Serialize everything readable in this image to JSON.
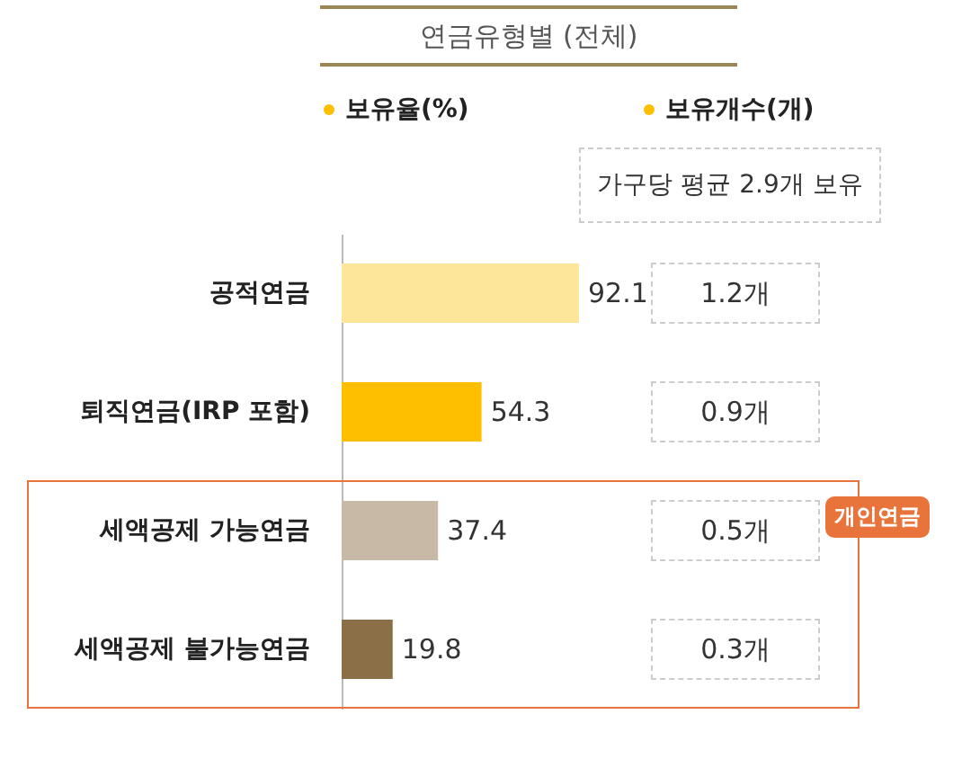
{
  "chart_data": {
    "type": "bar",
    "orientation": "horizontal",
    "title": "연금유형별 (전체)",
    "xlabel": "보유율(%)",
    "categories": [
      "공적연금",
      "퇴직연금(IRP 포함)",
      "세액공제 가능연금",
      "세액공제 불가능연금"
    ],
    "values": [
      92.1,
      54.3,
      37.4,
      19.8
    ],
    "colors": [
      "#fde59a",
      "#fdbf00",
      "#c8b9a6",
      "#8b6f47"
    ],
    "tick_labels": "y",
    "data_labels": true,
    "annotations": [
      "보유개수(개)",
      "가구당 평균 2.9개 보유",
      "1.2개",
      "0.9개",
      "0.5개",
      "0.3개",
      "개인연금"
    ]
  }
}
